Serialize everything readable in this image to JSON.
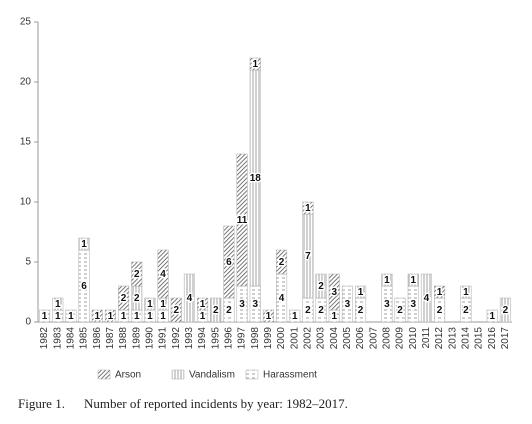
{
  "chart_data": {
    "type": "stacked_bar",
    "caption_label": "Figure 1.",
    "title": "Number of reported incidents by year: 1982–2017.",
    "categories": [
      "1982",
      "1983",
      "1984",
      "1985",
      "1986",
      "1987",
      "1988",
      "1989",
      "1990",
      "1991",
      "1992",
      "1993",
      "1994",
      "1995",
      "1996",
      "1997",
      "1998",
      "1999",
      "2000",
      "2001",
      "2002",
      "2003",
      "2004",
      "2005",
      "2006",
      "2007",
      "2008",
      "2009",
      "2010",
      "2011",
      "2012",
      "2013",
      "2014",
      "2015",
      "2016",
      "2017"
    ],
    "series": [
      {
        "name": "Arson",
        "color": "#555555",
        "pattern": "diagonal",
        "values": [
          0,
          0,
          0,
          0,
          1,
          1,
          2,
          2,
          0,
          4,
          2,
          0,
          1,
          0,
          6,
          11,
          1,
          1,
          2,
          0,
          1,
          0,
          3,
          0,
          0,
          0,
          0,
          0,
          0,
          0,
          1,
          0,
          0,
          0,
          0,
          0
        ]
      },
      {
        "name": "Vandalism",
        "color": "#888888",
        "pattern": "vertical",
        "values": [
          0,
          1,
          0,
          1,
          0,
          0,
          0,
          2,
          1,
          1,
          0,
          4,
          0,
          2,
          0,
          0,
          18,
          0,
          0,
          0,
          7,
          2,
          0,
          0,
          1,
          0,
          1,
          0,
          1,
          4,
          0,
          0,
          1,
          0,
          0,
          2
        ]
      },
      {
        "name": "Harassment",
        "color": "#888888",
        "pattern": "dashed",
        "values": [
          1,
          1,
          1,
          6,
          0,
          0,
          1,
          1,
          1,
          1,
          0,
          0,
          1,
          0,
          2,
          3,
          3,
          0,
          4,
          1,
          2,
          2,
          1,
          3,
          2,
          0,
          3,
          2,
          3,
          0,
          2,
          0,
          2,
          0,
          1,
          0
        ]
      }
    ],
    "ylim": [
      0,
      25
    ],
    "yticks": [
      0,
      5,
      10,
      15,
      20,
      25
    ]
  }
}
